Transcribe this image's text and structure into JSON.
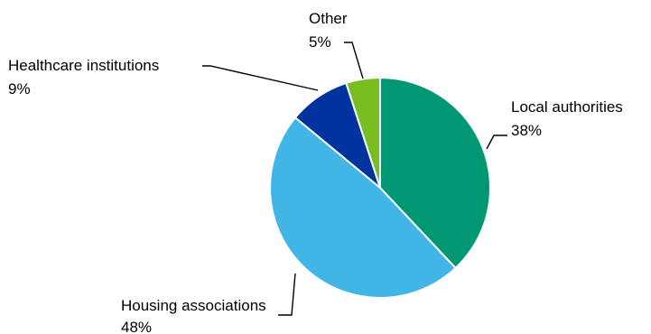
{
  "chart_data": {
    "type": "pie",
    "title": "",
    "unit": "%",
    "start_angle_deg": 0,
    "direction": "clockwise",
    "legend": "none",
    "slices": [
      {
        "label": "Local authorities",
        "value": 38,
        "value_label": "38%",
        "color": "#009874"
      },
      {
        "label": "Housing associations",
        "value": 48,
        "value_label": "48%",
        "color": "#41b6e6"
      },
      {
        "label": "Healthcare institutions",
        "value": 9,
        "value_label": "9%",
        "color": "#0033a0"
      },
      {
        "label": "Other",
        "value": 5,
        "value_label": "5%",
        "color": "#78be20"
      }
    ]
  }
}
